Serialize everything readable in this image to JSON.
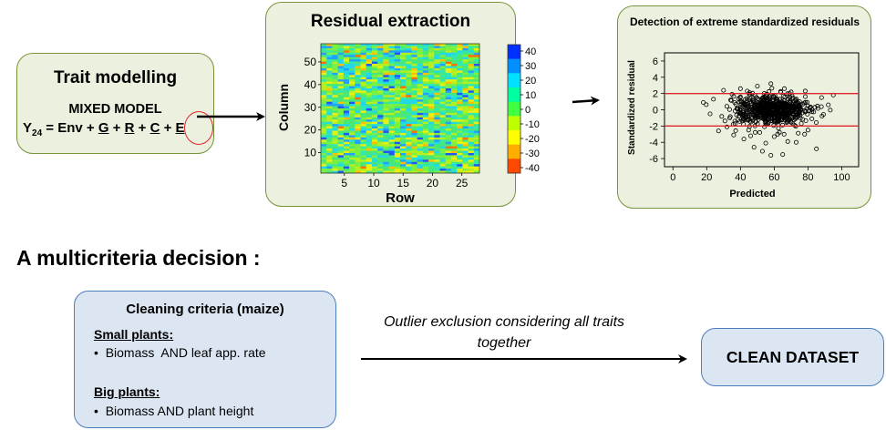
{
  "trait": {
    "title": "Trait modelling",
    "model_label": "MIXED MODEL",
    "eq_y": "Y",
    "eq_sub": "24",
    "eq_env": " = Env + ",
    "eq_g": "G",
    "eq_plus1": " + ",
    "eq_r": "R",
    "eq_plus2": " + ",
    "eq_c": "C",
    "eq_plus3": " + ",
    "eq_e": "E"
  },
  "residual": {
    "title": "Residual extraction"
  },
  "detection": {
    "title": "Detection of extreme standardized residuals"
  },
  "decision_heading": "A multicriteria decision :",
  "criteria": {
    "title": "Cleaning criteria (maize)",
    "small_heading": "Small plants:",
    "small_item": "Biomass  AND leaf app. rate",
    "big_heading": "Big plants:",
    "big_item": "Biomass AND plant height",
    "bullet": "•"
  },
  "outlier_text": "Outlier exclusion considering all traits together",
  "clean_dataset": "CLEAN DATASET",
  "chart_data": [
    {
      "type": "heatmap",
      "xlabel": "Row",
      "ylabel": "Column",
      "x_ticks": [
        5,
        10,
        15,
        20,
        25
      ],
      "y_ticks": [
        10,
        20,
        30,
        40,
        50
      ],
      "xlim": [
        1,
        28
      ],
      "ylim": [
        1,
        58
      ],
      "colorbar_ticks": [
        40,
        30,
        20,
        10,
        0,
        -10,
        -20,
        -30,
        -40
      ],
      "colorbar_colors": [
        "#ff4800",
        "#ffae00",
        "#ffff00",
        "#bfff00",
        "#40ff40",
        "#00ffa0",
        "#00e0ff",
        "#0090ff",
        "#0030ff"
      ]
    },
    {
      "type": "scatter",
      "xlabel": "Predicted",
      "ylabel": "Standardized residual",
      "x_ticks": [
        0,
        20,
        40,
        60,
        80,
        100
      ],
      "y_ticks": [
        6,
        4,
        2,
        0,
        -2,
        -4,
        -6
      ],
      "xlim": [
        -5,
        110
      ],
      "ylim": [
        -7,
        7
      ],
      "thresholds": [
        2,
        -2
      ],
      "threshold_color": "#e0262a"
    }
  ]
}
